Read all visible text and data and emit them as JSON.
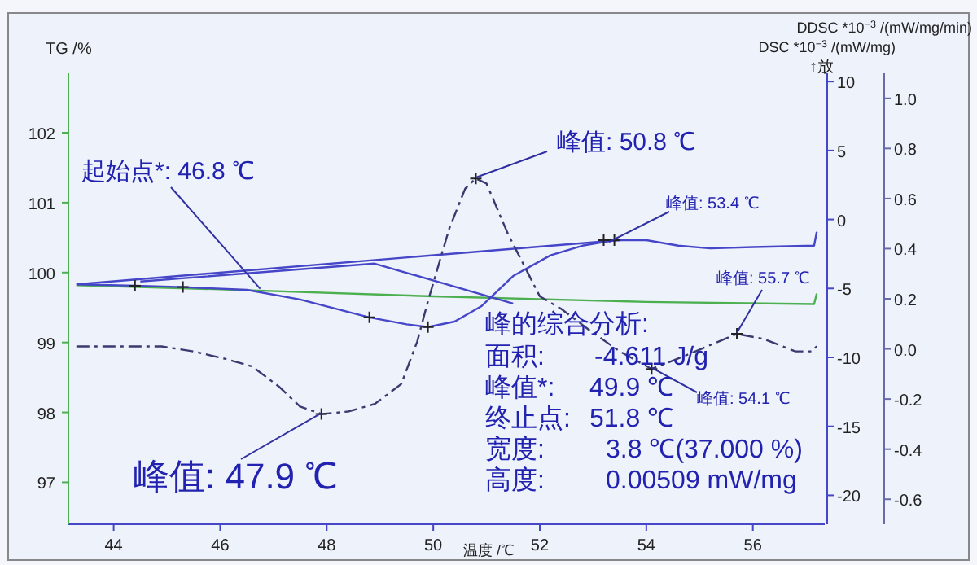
{
  "chart_data": {
    "type": "line",
    "ylabel": "TG /%",
    "xlabel": "温度 /℃",
    "y2label": "DSC *10$^{−3}$ /(mW/mg)",
    "y3label": "DDSC *10$^{−3}$ /(mW/mg/min)",
    "xlim": [
      43.15,
      57.35
    ],
    "xticks": [
      44,
      46,
      48,
      50,
      52,
      54,
      56
    ],
    "ylim": [
      96.4,
      102.85
    ],
    "yticks": [
      97,
      98,
      99,
      100,
      101,
      102
    ],
    "y2lim": [
      -22.1,
      10.6
    ],
    "y2ticks": [
      10,
      5,
      0,
      -5,
      -10,
      -15,
      -20
    ],
    "y3lim": [
      -0.7,
      1.1
    ],
    "y3ticks": [
      {
        "value": 1,
        "label": "1.0"
      },
      0.8,
      0.6,
      0.4,
      0.2,
      {
        "value": 0,
        "label": "0.0"
      },
      -0.2,
      -0.4,
      -0.6
    ],
    "series": [
      {
        "color": "#4caf50",
        "x": [
          43.3,
          46,
          50,
          54,
          57.15,
          57.2
        ],
        "values": [
          99.82,
          99.76,
          99.66,
          99.58,
          99.55,
          99.7
        ]
      },
      {
        "axis": "y2",
        "color": "#4646c8",
        "x": [
          43.3,
          44.4,
          45.3,
          46.5,
          47.5,
          48.8,
          49.5,
          49.9,
          50.4,
          50.9,
          51.5,
          52.2,
          52.8,
          53.4,
          54.0,
          54.6,
          55.2,
          56.0,
          57.15,
          57.2
        ],
        "values": [
          -4.7,
          -4.8,
          -4.9,
          -5.1,
          -5.8,
          -7.1,
          -7.6,
          -7.8,
          -7.4,
          -6.3,
          -4.1,
          -2.6,
          -1.9,
          -1.5,
          -1.5,
          -1.9,
          -2.1,
          -2.0,
          -1.9,
          -0.9
        ]
      },
      {
        "axis": "y2",
        "color": "#4646c8",
        "x": [
          43.3,
          53.5
        ],
        "values": [
          -4.7,
          -1.5
        ]
      },
      {
        "axis": "y2",
        "color": "#4646c8",
        "x": [
          44.5,
          48.9,
          51.5
        ],
        "values": [
          -4.5,
          -3.2,
          -6.1
        ]
      },
      {
        "axis": "y3",
        "color": "#3a3a70",
        "line_style": "dashed",
        "x": [
          43.3,
          44.3,
          44.9,
          45.5,
          46.1,
          46.6,
          47.1,
          47.5,
          47.9,
          48.4,
          48.9,
          49.4,
          49.7,
          49.9,
          50.3,
          50.6,
          50.8,
          51.0,
          51.4,
          52.0,
          52.4,
          52.9,
          53.5,
          54.1,
          54.7,
          55.7,
          56.2,
          56.8,
          57.1,
          57.2
        ],
        "values": [
          0.01,
          0.01,
          0.01,
          -0.01,
          -0.04,
          -0.07,
          -0.15,
          -0.23,
          -0.26,
          -0.25,
          -0.22,
          -0.14,
          0.03,
          0.19,
          0.48,
          0.64,
          0.68,
          0.66,
          0.46,
          0.21,
          0.16,
          0.08,
          -0.01,
          -0.08,
          -0.03,
          0.06,
          0.04,
          -0.01,
          -0.01,
          0.01
        ]
      },
      {
        "type": "scatter",
        "axis": "y2",
        "marker": "cross",
        "color": "#222222",
        "x": [
          44.4,
          45.3,
          48.8,
          49.9,
          53.2,
          53.4
        ],
        "values": [
          -4.8,
          -4.9,
          -7.1,
          -7.8,
          -1.5,
          -1.5
        ]
      },
      {
        "type": "scatter",
        "axis": "y3",
        "marker": "cross",
        "color": "#222222",
        "x": [
          47.9,
          50.8,
          54.1,
          55.7
        ],
        "values": [
          -0.26,
          0.68,
          -0.08,
          0.06
        ]
      }
    ],
    "annotations": [
      {
        "text": "起始点*: 46.8 ℃",
        "x": 46.75,
        "y": 99.77
      },
      {
        "text": "峰值: 50.8 ℃",
        "x": 50.8,
        "y": 101.36
      },
      {
        "text": "峰值: 53.4 ℃",
        "x": 53.3,
        "y": 100.44
      },
      {
        "text": "峰值: 55.7 ℃",
        "x": 55.7,
        "y": 99.14
      },
      {
        "text": "峰值: 54.1 ℃",
        "x": 54.1,
        "y": 98.64
      },
      {
        "text": "峰值: 47.9 ℃",
        "x": 47.9,
        "y": 97.99
      },
      "峰的综合分析:",
      "面积:",
      "-4.611 J/g",
      "峰值*:",
      "49.9 ℃",
      "终止点:",
      "51.8 ℃",
      "宽度:",
      "3.8 ℃(37.000 %)",
      "高度:",
      "0.00509 mW/mg",
      "↑放"
    ]
  }
}
